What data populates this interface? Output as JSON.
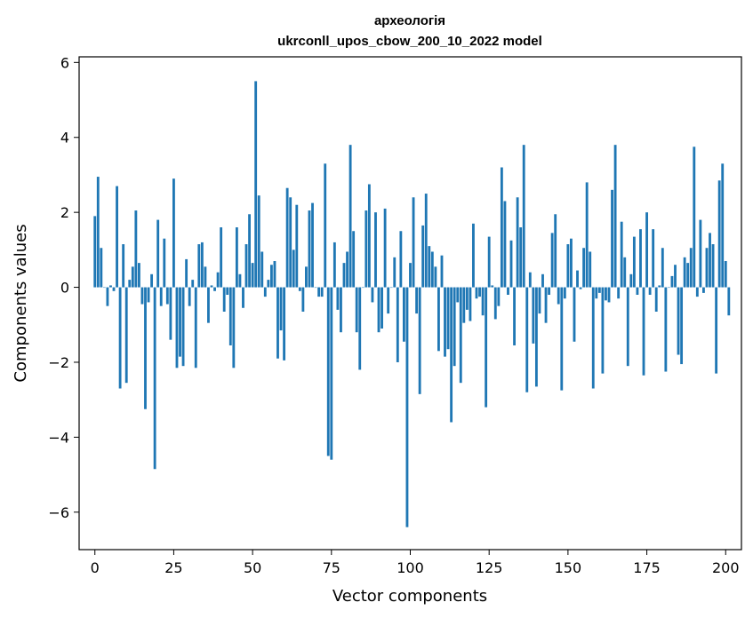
{
  "chart_data": {
    "type": "bar",
    "title_line1": "археологія",
    "title_line2": "ukrconll_upos_cbow_200_10_2022 model",
    "xlabel": "Vector components",
    "ylabel": "Components values",
    "xlim": [
      -5,
      205
    ],
    "ylim": [
      -7,
      6.15
    ],
    "xticks": [
      0,
      25,
      50,
      75,
      100,
      125,
      150,
      175,
      200
    ],
    "yticks": [
      -6,
      -4,
      -2,
      0,
      2,
      4,
      6
    ],
    "ytick_labels": [
      "−6",
      "−4",
      "−2",
      "0",
      "2",
      "4",
      "6"
    ],
    "grid": false,
    "bar_color": "#1f77b4",
    "values": [
      1.9,
      2.95,
      1.05,
      0.0,
      -0.5,
      0.05,
      -0.1,
      2.7,
      -2.7,
      1.15,
      -2.55,
      0.2,
      0.55,
      2.05,
      0.65,
      -0.45,
      -3.25,
      -0.4,
      0.35,
      -4.85,
      1.8,
      -0.5,
      1.3,
      -0.45,
      -1.4,
      2.9,
      -2.15,
      -1.85,
      -2.1,
      0.75,
      -0.5,
      0.2,
      -2.15,
      1.15,
      1.2,
      0.55,
      -0.95,
      0.05,
      -0.1,
      0.4,
      1.6,
      -0.65,
      -0.2,
      -1.55,
      -2.15,
      1.6,
      0.35,
      -0.55,
      1.15,
      1.95,
      0.65,
      5.5,
      2.45,
      0.95,
      -0.25,
      0.2,
      0.6,
      0.7,
      -1.9,
      -1.15,
      -1.95,
      2.65,
      2.4,
      1.0,
      2.2,
      -0.1,
      -0.65,
      0.55,
      2.05,
      2.25,
      0.0,
      -0.25,
      -0.25,
      3.3,
      -4.5,
      -4.6,
      1.2,
      -0.6,
      -1.2,
      0.65,
      0.95,
      3.8,
      1.5,
      -1.2,
      -2.2,
      0.0,
      2.05,
      2.75,
      -0.4,
      2.0,
      -1.2,
      -1.1,
      2.1,
      -0.7,
      0.0,
      0.8,
      -2.0,
      1.5,
      -1.45,
      -6.4,
      0.65,
      2.4,
      -0.7,
      -2.85,
      1.65,
      2.5,
      1.1,
      0.95,
      0.55,
      -1.7,
      0.85,
      -1.85,
      -1.65,
      -3.6,
      -2.1,
      -0.4,
      -2.55,
      -0.95,
      -0.6,
      -0.9,
      1.7,
      -0.3,
      -0.25,
      -0.75,
      -3.2,
      1.35,
      0.05,
      -0.85,
      -0.5,
      3.2,
      2.3,
      -0.2,
      1.25,
      -1.55,
      2.4,
      1.6,
      3.8,
      -2.8,
      0.4,
      -1.5,
      -2.65,
      -0.7,
      0.35,
      -0.95,
      -0.2,
      1.45,
      1.95,
      -0.45,
      -2.75,
      -0.3,
      1.15,
      1.3,
      -1.45,
      0.45,
      -0.05,
      1.05,
      2.8,
      0.95,
      -2.7,
      -0.3,
      -0.15,
      -2.3,
      -0.35,
      -0.4,
      2.6,
      3.8,
      -0.3,
      1.75,
      0.8,
      -2.1,
      0.35,
      1.35,
      -0.2,
      1.55,
      -2.35,
      2.0,
      -0.2,
      1.55,
      -0.65,
      0.05,
      1.05,
      -2.25,
      0.0,
      0.3,
      0.6,
      -1.8,
      -2.05,
      0.8,
      0.65,
      1.05,
      3.75,
      -0.25,
      1.8,
      -0.15,
      1.05,
      1.45,
      1.15,
      -2.3,
      2.85,
      3.3,
      0.7,
      -0.75
    ]
  }
}
